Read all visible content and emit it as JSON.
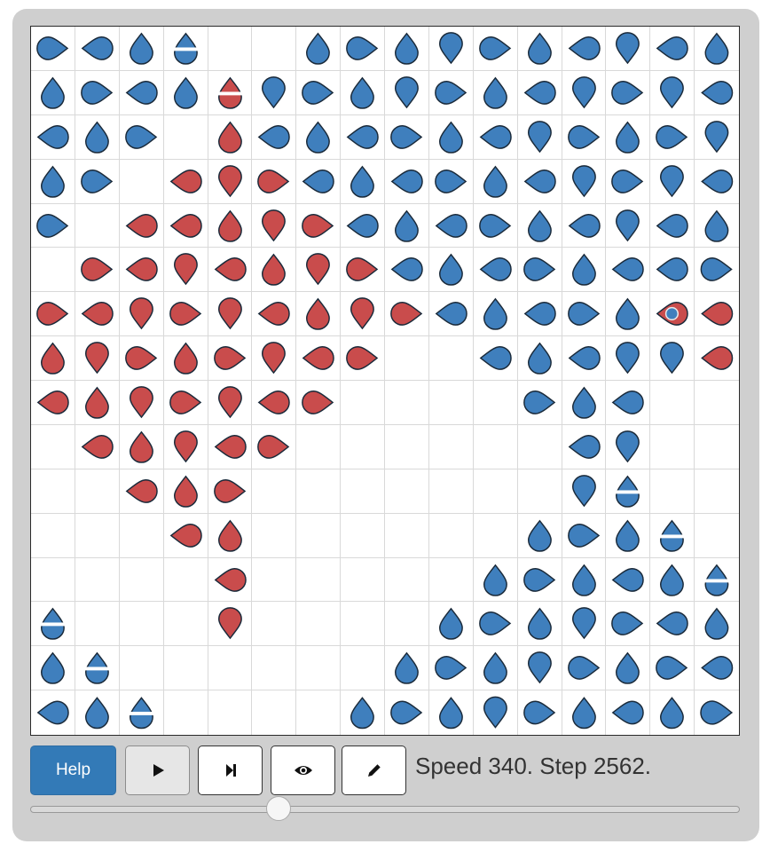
{
  "simulation": {
    "grid_size": 16,
    "colors": {
      "blue": "#3f7fbd",
      "red": "#c94c4c",
      "outline": "#1a2a3a",
      "stripe": "#ffffff"
    },
    "cell_codes": {
      "b": "blue agent",
      "r": "red agent",
      "B": "blue agent (new)",
      "R": "red agent (new)",
      "X": "highlighted red agent",
      "_": "empty"
    },
    "rows": [
      [
        "b>",
        "b<",
        "b^",
        "B",
        "_",
        "_",
        "b^",
        "b>",
        "b^",
        "bv",
        "b>",
        "b^",
        "b<",
        "bv",
        "b<",
        "b^"
      ],
      [
        "b^",
        "b>",
        "b<",
        "b^",
        "R",
        "bv",
        "b>",
        "b^",
        "bv",
        "b>",
        "b^",
        "b<",
        "bv",
        "b>",
        "bv",
        "b<"
      ],
      [
        "b<",
        "b^",
        "b>",
        "_",
        "r^",
        "b<",
        "b^",
        "b<",
        "b>",
        "b^",
        "b<",
        "bv",
        "b>",
        "b^",
        "b>",
        "bv"
      ],
      [
        "b^",
        "b>",
        "_",
        "r<",
        "rv",
        "r>",
        "b<",
        "b^",
        "b<",
        "b>",
        "b^",
        "b<",
        "bv",
        "b>",
        "bv",
        "b<"
      ],
      [
        "b>",
        "_",
        "r<",
        "r<",
        "r^",
        "rv",
        "r>",
        "b<",
        "b^",
        "b<",
        "b>",
        "b^",
        "b<",
        "bv",
        "b<",
        "b^"
      ],
      [
        "_",
        "r>",
        "r<",
        "rv",
        "r<",
        "r^",
        "rv",
        "r>",
        "b<",
        "b^",
        "b<",
        "b>",
        "b^",
        "b<",
        "b<",
        "b>"
      ],
      [
        "r>",
        "r<",
        "rv",
        "r>",
        "rv",
        "r<",
        "r^",
        "rv",
        "r>",
        "b<",
        "b^",
        "b<",
        "b>",
        "b^",
        "X",
        "r<"
      ],
      [
        "r^",
        "rv",
        "r>",
        "r^",
        "r>",
        "rv",
        "r<",
        "r>",
        "_",
        "_",
        "b<",
        "b^",
        "b<",
        "bv",
        "bv",
        "r<"
      ],
      [
        "r<",
        "r^",
        "rv",
        "r>",
        "rv",
        "r<",
        "r>",
        "_",
        "_",
        "_",
        "_",
        "b>",
        "b^",
        "b<",
        "_",
        "_"
      ],
      [
        "_",
        "r<",
        "r^",
        "rv",
        "r<",
        "r>",
        "_",
        "_",
        "_",
        "_",
        "_",
        "_",
        "b<",
        "bv",
        "_",
        "_"
      ],
      [
        "_",
        "_",
        "r<",
        "r^",
        "r>",
        "_",
        "_",
        "_",
        "_",
        "_",
        "_",
        "_",
        "bv",
        "B",
        "_",
        "_"
      ],
      [
        "_",
        "_",
        "_",
        "r<",
        "r^",
        "_",
        "_",
        "_",
        "_",
        "_",
        "_",
        "b^",
        "b>",
        "b^",
        "B",
        "_"
      ],
      [
        "_",
        "_",
        "_",
        "_",
        "r<",
        "_",
        "_",
        "_",
        "_",
        "_",
        "b^",
        "b>",
        "b^",
        "b<",
        "b^",
        "B"
      ],
      [
        "B",
        "_",
        "_",
        "_",
        "rv",
        "_",
        "_",
        "_",
        "_",
        "b^",
        "b>",
        "b^",
        "bv",
        "b>",
        "b<",
        "b^"
      ],
      [
        "b^",
        "B",
        "_",
        "_",
        "_",
        "_",
        "_",
        "_",
        "b^",
        "b>",
        "b^",
        "bv",
        "b>",
        "b^",
        "b>",
        "b<"
      ],
      [
        "b<",
        "b^",
        "B",
        "_",
        "_",
        "_",
        "_",
        "b^",
        "b>",
        "b^",
        "bv",
        "b>",
        "b^",
        "b<",
        "b^",
        "b>"
      ]
    ]
  },
  "controls": {
    "help_label": "Help",
    "play_icon": "play-icon",
    "step_icon": "step-forward-icon",
    "view_icon": "eye-icon",
    "edit_icon": "pencil-icon",
    "status_text": "Speed 340. Step 2562.",
    "speed_slider_value": 0.35
  }
}
